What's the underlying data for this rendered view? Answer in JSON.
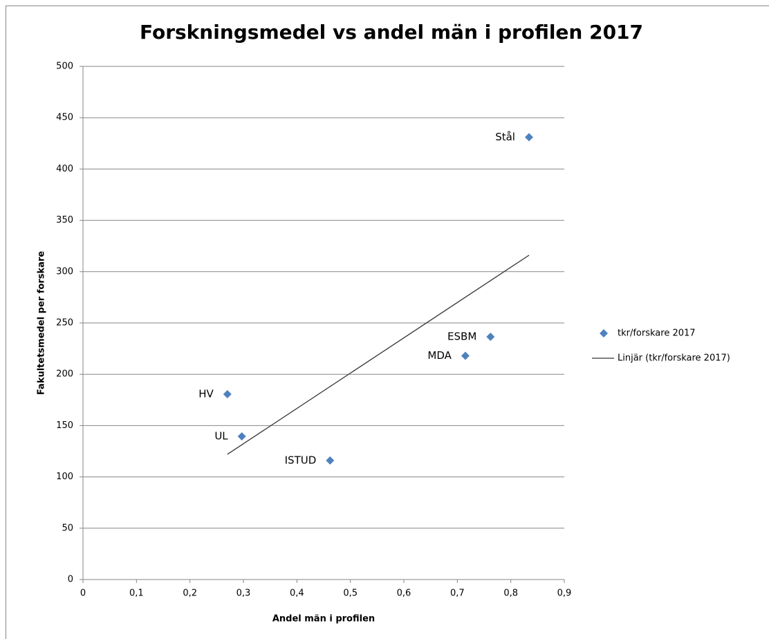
{
  "chart_data": {
    "type": "scatter",
    "title": "Forskningsmedel vs andel män i profilen 2017",
    "xlabel": "Andel män i profilen",
    "ylabel": "Fakultetsmedel per forskare",
    "xlim": [
      0,
      0.9
    ],
    "xticks": [
      0,
      {
        "value": 0.1,
        "label": "0,1"
      },
      {
        "value": 0.2,
        "label": "0,2"
      },
      {
        "value": 0.3,
        "label": "0,3"
      },
      {
        "value": 0.4,
        "label": "0,4"
      },
      {
        "value": 0.5,
        "label": "0,5"
      },
      {
        "value": 0.6,
        "label": "0,6"
      },
      {
        "value": 0.7,
        "label": "0,7"
      },
      {
        "value": 0.8,
        "label": "0,8"
      },
      {
        "value": 0.9,
        "label": "0,9"
      }
    ],
    "ylim": [
      0,
      500
    ],
    "yticks": [
      0,
      50,
      100,
      150,
      200,
      250,
      300,
      350,
      400,
      450,
      500
    ],
    "grid": true,
    "legend": "right",
    "series": [
      {
        "name": "tkr/forskare 2017",
        "type": "scatter",
        "color": "#4f81bd",
        "x": [
          0.834,
          0.762,
          0.715,
          0.27,
          0.297,
          0.462
        ],
        "values": [
          431,
          236.5,
          218,
          180.6,
          139.5,
          116
        ],
        "labels": [
          "Stål",
          "ESBM",
          "MDA",
          "HV",
          "UL",
          "ISTUD"
        ]
      },
      {
        "name": "Linjär (tkr/forskare 2017)",
        "type": "line",
        "color": "#333333",
        "x": [
          0.27,
          0.834
        ],
        "values": [
          122,
          316
        ]
      }
    ]
  }
}
